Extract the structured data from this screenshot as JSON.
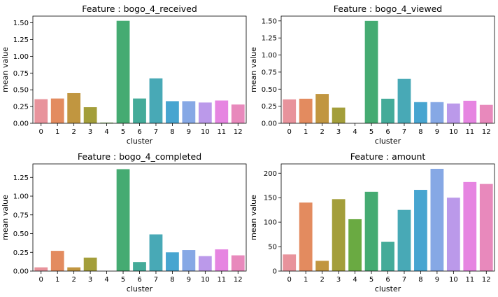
{
  "chart_data": [
    {
      "type": "bar",
      "title": "Feature : bogo_4_received",
      "xlabel": "cluster",
      "ylabel": "mean value",
      "categories": [
        "0",
        "1",
        "2",
        "3",
        "4",
        "5",
        "6",
        "7",
        "8",
        "9",
        "10",
        "11",
        "12"
      ],
      "values": [
        0.36,
        0.37,
        0.45,
        0.24,
        0.01,
        1.53,
        0.37,
        0.67,
        0.33,
        0.33,
        0.31,
        0.34,
        0.28
      ],
      "yticks": [
        "0.00",
        "0.25",
        "0.50",
        "0.75",
        "1.00",
        "1.25",
        "1.50"
      ],
      "ylim": [
        0,
        1.6
      ],
      "grid": false,
      "legend": "none"
    },
    {
      "type": "bar",
      "title": "Feature : bogo_4_viewed",
      "xlabel": "cluster",
      "ylabel": "mean value",
      "categories": [
        "0",
        "1",
        "2",
        "3",
        "4",
        "5",
        "6",
        "7",
        "8",
        "9",
        "10",
        "11",
        "12"
      ],
      "values": [
        0.35,
        0.36,
        0.43,
        0.23,
        0.0,
        1.5,
        0.36,
        0.65,
        0.31,
        0.31,
        0.29,
        0.33,
        0.27
      ],
      "yticks": [
        "0.00",
        "0.25",
        "0.50",
        "0.75",
        "1.00",
        "1.25",
        "1.50"
      ],
      "ylim": [
        0,
        1.57
      ],
      "grid": false,
      "legend": "none"
    },
    {
      "type": "bar",
      "title": "Feature : bogo_4_completed",
      "xlabel": "cluster",
      "ylabel": "mean value",
      "categories": [
        "0",
        "1",
        "2",
        "3",
        "4",
        "5",
        "6",
        "7",
        "8",
        "9",
        "10",
        "11",
        "12"
      ],
      "values": [
        0.05,
        0.27,
        0.05,
        0.18,
        0.0,
        1.36,
        0.12,
        0.49,
        0.25,
        0.28,
        0.2,
        0.29,
        0.21
      ],
      "yticks": [
        "0.00",
        "0.25",
        "0.50",
        "0.75",
        "1.00",
        "1.25"
      ],
      "ylim": [
        0,
        1.43
      ],
      "grid": false,
      "legend": "none"
    },
    {
      "type": "bar",
      "title": "Feature : amount",
      "xlabel": "cluster",
      "ylabel": "mean value",
      "categories": [
        "0",
        "1",
        "2",
        "3",
        "4",
        "5",
        "6",
        "7",
        "8",
        "9",
        "10",
        "11",
        "12"
      ],
      "values": [
        34,
        140,
        21,
        147,
        106,
        162,
        60,
        125,
        166,
        209,
        150,
        182,
        178
      ],
      "yticks": [
        "0",
        "50",
        "100",
        "150",
        "200"
      ],
      "ylim": [
        0,
        219
      ],
      "grid": false,
      "legend": "none"
    }
  ],
  "palette": [
    "#e8939c",
    "#e38b5f",
    "#c19640",
    "#a39e3a",
    "#6aaa42",
    "#45ab72",
    "#44ab99",
    "#48a9b6",
    "#47a5d0",
    "#86a8e5",
    "#bb99ea",
    "#e685e1",
    "#e889bc"
  ]
}
